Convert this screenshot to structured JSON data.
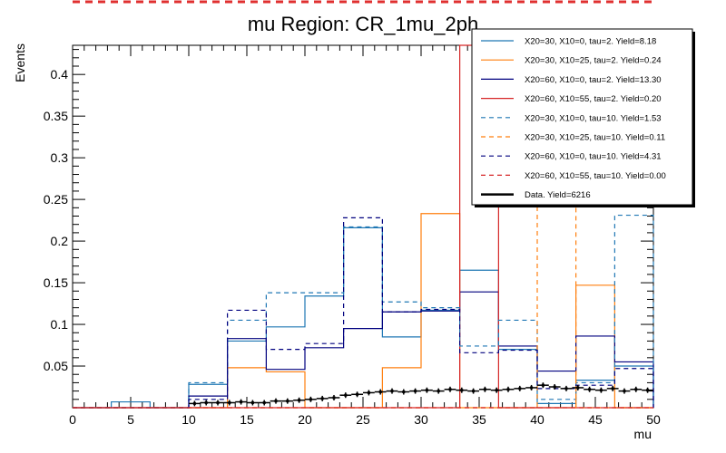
{
  "chart_data": {
    "type": "line",
    "title": "mu Region: CR_1mu_2ph",
    "xlabel": "mu",
    "ylabel": "Events",
    "xlim": [
      0,
      50
    ],
    "ylim": [
      0,
      0.435
    ],
    "grid": false,
    "legend_position": "top-right",
    "x_ticks": [
      "0",
      "5",
      "10",
      "15",
      "20",
      "25",
      "30",
      "35",
      "40",
      "45",
      "50"
    ],
    "y_ticks": [
      "0.05",
      "0.1",
      "0.15",
      "0.2",
      "0.25",
      "0.3",
      "0.35",
      "0.4"
    ],
    "bin_edges": [
      0,
      3.33,
      6.67,
      10,
      13.33,
      16.67,
      20,
      23.33,
      26.67,
      30,
      33.33,
      36.67,
      40,
      43.33,
      46.67,
      50
    ],
    "series": [
      {
        "name": "X20=30, X10=0, tau=2. Yield=8.18",
        "color": "#1f77b4",
        "style": "solid",
        "values": [
          0,
          0.007,
          0,
          0.028,
          0.08,
          0.097,
          0.134,
          0.216,
          0.085,
          0.117,
          0.165,
          0.07,
          0.005,
          0.033,
          0.05
        ]
      },
      {
        "name": "X20=30, X10=25, tau=2. Yield=0.24",
        "color": "#ff7f0e",
        "style": "solid",
        "values": [
          0,
          0,
          0,
          0,
          0.048,
          0.043,
          0,
          0,
          0.048,
          0.233,
          0,
          0,
          0,
          0.147,
          0
        ]
      },
      {
        "name": "X20=60, X10=0, tau=2. Yield=13.30",
        "color": "#00007f",
        "style": "solid",
        "values": [
          0,
          0,
          0,
          0.014,
          0.083,
          0.046,
          0.072,
          0.095,
          0.115,
          0.116,
          0.139,
          0.074,
          0.044,
          0.086,
          0.055
        ]
      },
      {
        "name": "X20=60, X10=55, tau=2. Yield=0.20",
        "color": "#d62728",
        "style": "solid",
        "values": [
          0,
          0,
          0,
          0,
          0,
          0,
          0,
          0,
          0,
          0,
          0.435,
          0,
          0,
          0,
          0
        ]
      },
      {
        "name": "X20=30, X10=0, tau=10. Yield=1.53",
        "color": "#1f77b4",
        "style": "dashed",
        "values": [
          0,
          0,
          0,
          0.03,
          0.105,
          0.138,
          0.138,
          0.217,
          0.127,
          0.12,
          0.074,
          0.105,
          0.01,
          0.03,
          0.231
        ]
      },
      {
        "name": "X20=30, X10=25, tau=10. Yield=0.11",
        "color": "#ff7f0e",
        "style": "dashed",
        "values": [
          0,
          0,
          0,
          0,
          0,
          0,
          0,
          0,
          0,
          0,
          0,
          0,
          0.435,
          0,
          0
        ]
      },
      {
        "name": "X20=60, X10=0, tau=10. Yield=4.31",
        "color": "#00007f",
        "style": "dashed",
        "values": [
          0,
          0,
          0,
          0.01,
          0.117,
          0.07,
          0.077,
          0.228,
          0.115,
          0.118,
          0.066,
          0.069,
          0.023,
          0.027,
          0.047
        ]
      },
      {
        "name": "X20=60, X10=55, tau=10. Yield=0.00",
        "color": "#d62728",
        "style": "dashed",
        "values": [
          0,
          0,
          0,
          0,
          0,
          0,
          0,
          0,
          0,
          0,
          0,
          0,
          0,
          0,
          0
        ]
      }
    ],
    "data_series": {
      "name": "Data. Yield=6216",
      "color": "#000000",
      "x": [
        10.5,
        11.5,
        12.5,
        13.5,
        14.5,
        15.5,
        16.5,
        17.5,
        18.5,
        19.5,
        20.5,
        21.5,
        22.5,
        23.5,
        24.5,
        25.5,
        26.5,
        27.5,
        28.5,
        29.5,
        30.5,
        31.5,
        32.5,
        33.5,
        34.5,
        35.5,
        36.5,
        37.5,
        38.5,
        39.5,
        40.5,
        41.5,
        42.5,
        43.5,
        44.5,
        45.5,
        46.5,
        47.5,
        48.5,
        49.5
      ],
      "y": [
        0.005,
        0.006,
        0.006,
        0.006,
        0.007,
        0.006,
        0.006,
        0.008,
        0.008,
        0.009,
        0.01,
        0.011,
        0.012,
        0.015,
        0.016,
        0.018,
        0.019,
        0.02,
        0.019,
        0.02,
        0.021,
        0.02,
        0.022,
        0.021,
        0.02,
        0.022,
        0.021,
        0.022,
        0.023,
        0.024,
        0.027,
        0.025,
        0.023,
        0.024,
        0.022,
        0.021,
        0.023,
        0.02,
        0.022,
        0.021
      ]
    }
  }
}
